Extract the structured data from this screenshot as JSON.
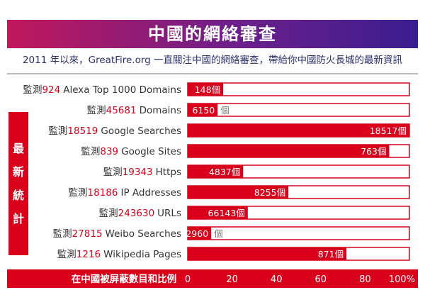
{
  "header": {
    "title": "中國的網絡審查",
    "subtitle": "2011 年以來，GreatFire.org 一直關注中國的網絡審查，帶給你中國防火長城的最新資訊",
    "side_label": [
      "最",
      "新",
      "統",
      "計"
    ]
  },
  "colors": {
    "accent": "#d8001b",
    "title_start": "#c0185a",
    "title_end": "#3a1e8f",
    "text": "#333333"
  },
  "chart_data": {
    "type": "bar",
    "orientation": "horizontal",
    "row_prefix": "監測",
    "value_suffix": "個",
    "categories": [
      {
        "count": "924",
        "label": "Alexa Top 1000 Domains",
        "blocked": 148,
        "blocked_label": "148",
        "percent": 16.0,
        "suffix_inside": true
      },
      {
        "count": "45681",
        "label": "Domains",
        "blocked": 6150,
        "blocked_label": "6150",
        "percent": 13.5,
        "suffix_inside": false
      },
      {
        "count": "18519",
        "label": "Google Searches",
        "blocked": 18517,
        "blocked_label": "18517",
        "percent": 99.99,
        "suffix_inside": true
      },
      {
        "count": "839",
        "label": "Google Sites",
        "blocked": 763,
        "blocked_label": "763",
        "percent": 90.9,
        "suffix_inside": true
      },
      {
        "count": "19343",
        "label": "Https",
        "blocked": 4837,
        "blocked_label": "4837",
        "percent": 25.0,
        "suffix_inside": true
      },
      {
        "count": "18186",
        "label": "IP Addresses",
        "blocked": 8255,
        "blocked_label": "8255",
        "percent": 45.4,
        "suffix_inside": true
      },
      {
        "count": "243630",
        "label": "URLs",
        "blocked": 66143,
        "blocked_label": "66143",
        "percent": 27.1,
        "suffix_inside": true
      },
      {
        "count": "27815",
        "label": "Weibo Searches",
        "blocked": 2960,
        "blocked_label": "2960",
        "percent": 10.6,
        "suffix_inside": false
      },
      {
        "count": "1216",
        "label": "Wikipedia Pages",
        "blocked": 871,
        "blocked_label": "871",
        "percent": 71.6,
        "suffix_inside": true
      }
    ],
    "xlabel": "在中國被屏蔽數目和比例",
    "xticks": [
      "0",
      "20",
      "40",
      "60",
      "80",
      "100%"
    ],
    "xlim": [
      0,
      100
    ],
    "grid": false
  }
}
